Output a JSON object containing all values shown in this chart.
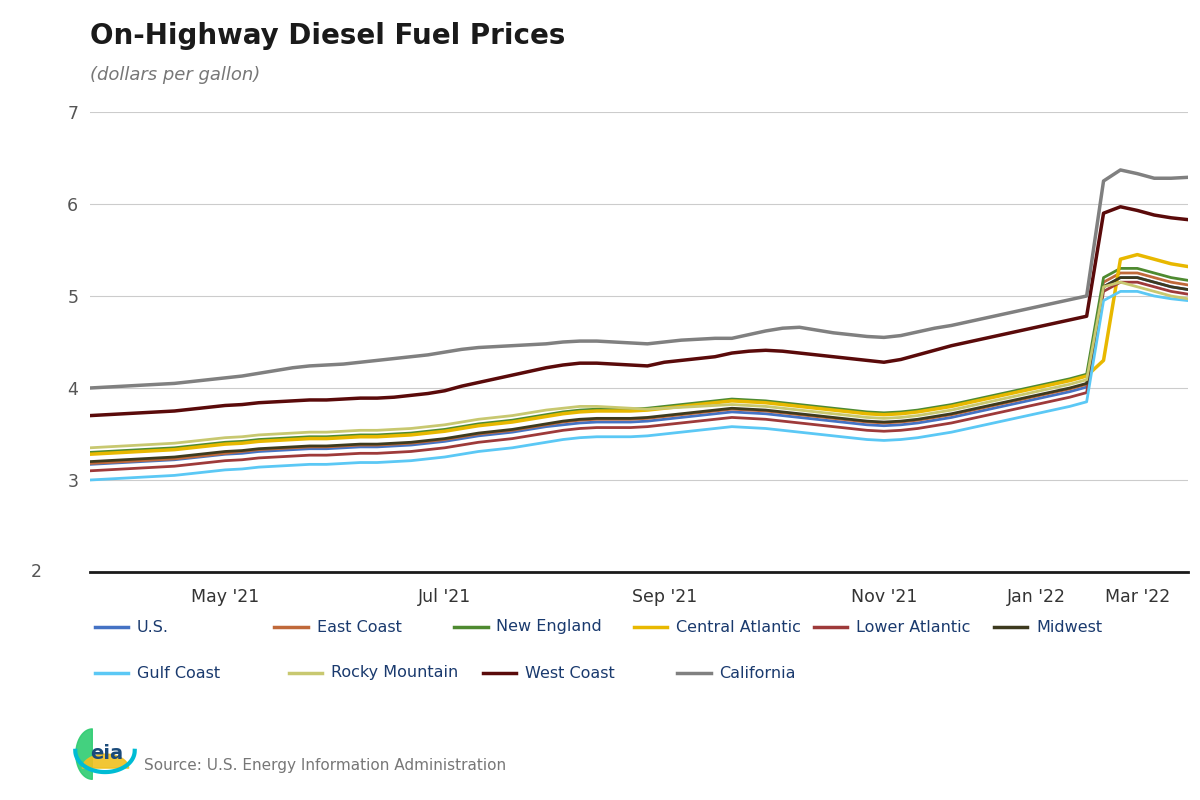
{
  "title": "On-Highway Diesel Fuel Prices",
  "subtitle": "(dollars per gallon)",
  "source": "Source: U.S. Energy Information Administration",
  "ylim": [
    2,
    7
  ],
  "yticks": [
    3,
    4,
    5,
    6,
    7
  ],
  "y2_label": "2",
  "background_color": "#ffffff",
  "plot_bg_color": "#ffffff",
  "legend_bg_color": "#e6e6e6",
  "series": [
    {
      "name": "U.S.",
      "color": "#4472c4",
      "lw": 2.0,
      "values": [
        3.17,
        3.18,
        3.19,
        3.2,
        3.21,
        3.22,
        3.24,
        3.26,
        3.28,
        3.29,
        3.31,
        3.32,
        3.33,
        3.34,
        3.34,
        3.35,
        3.36,
        3.36,
        3.37,
        3.38,
        3.4,
        3.42,
        3.45,
        3.48,
        3.5,
        3.52,
        3.55,
        3.58,
        3.6,
        3.62,
        3.63,
        3.63,
        3.63,
        3.64,
        3.66,
        3.68,
        3.7,
        3.72,
        3.74,
        3.73,
        3.72,
        3.7,
        3.68,
        3.66,
        3.64,
        3.62,
        3.6,
        3.59,
        3.6,
        3.62,
        3.65,
        3.68,
        3.72,
        3.76,
        3.8,
        3.84,
        3.88,
        3.92,
        3.96,
        4.01,
        5.1,
        5.2,
        5.2,
        5.15,
        5.1,
        5.07
      ]
    },
    {
      "name": "East Coast",
      "color": "#c0693a",
      "lw": 2.0,
      "values": [
        3.18,
        3.19,
        3.2,
        3.21,
        3.22,
        3.23,
        3.25,
        3.27,
        3.29,
        3.31,
        3.33,
        3.34,
        3.35,
        3.36,
        3.36,
        3.37,
        3.38,
        3.38,
        3.39,
        3.4,
        3.42,
        3.44,
        3.47,
        3.5,
        3.52,
        3.54,
        3.57,
        3.6,
        3.63,
        3.65,
        3.66,
        3.66,
        3.66,
        3.67,
        3.69,
        3.71,
        3.73,
        3.75,
        3.77,
        3.76,
        3.75,
        3.73,
        3.71,
        3.69,
        3.67,
        3.65,
        3.63,
        3.62,
        3.63,
        3.65,
        3.68,
        3.71,
        3.75,
        3.79,
        3.83,
        3.87,
        3.91,
        3.95,
        3.99,
        4.04,
        5.15,
        5.25,
        5.25,
        5.2,
        5.15,
        5.12
      ]
    },
    {
      "name": "New England",
      "color": "#4e8a30",
      "lw": 2.0,
      "values": [
        3.3,
        3.31,
        3.32,
        3.33,
        3.34,
        3.35,
        3.37,
        3.39,
        3.41,
        3.42,
        3.44,
        3.45,
        3.46,
        3.47,
        3.47,
        3.48,
        3.49,
        3.49,
        3.5,
        3.51,
        3.53,
        3.55,
        3.58,
        3.61,
        3.63,
        3.65,
        3.68,
        3.71,
        3.74,
        3.76,
        3.77,
        3.77,
        3.77,
        3.78,
        3.8,
        3.82,
        3.84,
        3.86,
        3.88,
        3.87,
        3.86,
        3.84,
        3.82,
        3.8,
        3.78,
        3.76,
        3.74,
        3.73,
        3.74,
        3.76,
        3.79,
        3.82,
        3.86,
        3.9,
        3.94,
        3.98,
        4.02,
        4.06,
        4.1,
        4.15,
        5.2,
        5.3,
        5.3,
        5.25,
        5.2,
        5.17
      ]
    },
    {
      "name": "Central Atlantic",
      "color": "#e8b800",
      "lw": 2.5,
      "values": [
        3.28,
        3.29,
        3.3,
        3.31,
        3.32,
        3.33,
        3.35,
        3.37,
        3.39,
        3.4,
        3.42,
        3.43,
        3.44,
        3.45,
        3.45,
        3.46,
        3.47,
        3.47,
        3.48,
        3.49,
        3.51,
        3.53,
        3.56,
        3.59,
        3.61,
        3.63,
        3.66,
        3.69,
        3.72,
        3.74,
        3.75,
        3.75,
        3.75,
        3.76,
        3.78,
        3.8,
        3.82,
        3.84,
        3.86,
        3.85,
        3.84,
        3.82,
        3.8,
        3.78,
        3.76,
        3.74,
        3.72,
        3.71,
        3.72,
        3.74,
        3.77,
        3.8,
        3.84,
        3.88,
        3.92,
        3.96,
        4.0,
        4.04,
        4.08,
        4.13,
        4.3,
        5.4,
        5.45,
        5.4,
        5.35,
        5.32
      ]
    },
    {
      "name": "Lower Atlantic",
      "color": "#9e3a3a",
      "lw": 2.0,
      "values": [
        3.1,
        3.11,
        3.12,
        3.13,
        3.14,
        3.15,
        3.17,
        3.19,
        3.21,
        3.22,
        3.24,
        3.25,
        3.26,
        3.27,
        3.27,
        3.28,
        3.29,
        3.29,
        3.3,
        3.31,
        3.33,
        3.35,
        3.38,
        3.41,
        3.43,
        3.45,
        3.48,
        3.51,
        3.54,
        3.56,
        3.57,
        3.57,
        3.57,
        3.58,
        3.6,
        3.62,
        3.64,
        3.66,
        3.68,
        3.67,
        3.66,
        3.64,
        3.62,
        3.6,
        3.58,
        3.56,
        3.54,
        3.53,
        3.54,
        3.56,
        3.59,
        3.62,
        3.66,
        3.7,
        3.74,
        3.78,
        3.82,
        3.86,
        3.9,
        3.95,
        5.05,
        5.15,
        5.15,
        5.1,
        5.05,
        5.02
      ]
    },
    {
      "name": "Midwest",
      "color": "#3d3a1e",
      "lw": 2.0,
      "values": [
        3.2,
        3.21,
        3.22,
        3.23,
        3.24,
        3.25,
        3.27,
        3.29,
        3.31,
        3.32,
        3.34,
        3.35,
        3.36,
        3.37,
        3.37,
        3.38,
        3.39,
        3.39,
        3.4,
        3.41,
        3.43,
        3.45,
        3.48,
        3.51,
        3.53,
        3.55,
        3.58,
        3.61,
        3.64,
        3.66,
        3.67,
        3.67,
        3.67,
        3.68,
        3.7,
        3.72,
        3.74,
        3.76,
        3.78,
        3.77,
        3.76,
        3.74,
        3.72,
        3.7,
        3.68,
        3.66,
        3.64,
        3.63,
        3.64,
        3.66,
        3.69,
        3.72,
        3.76,
        3.8,
        3.84,
        3.88,
        3.92,
        3.96,
        4.0,
        4.05,
        5.1,
        5.2,
        5.2,
        5.15,
        5.1,
        5.07
      ]
    },
    {
      "name": "Gulf Coast",
      "color": "#5bc8f5",
      "lw": 2.0,
      "values": [
        3.0,
        3.01,
        3.02,
        3.03,
        3.04,
        3.05,
        3.07,
        3.09,
        3.11,
        3.12,
        3.14,
        3.15,
        3.16,
        3.17,
        3.17,
        3.18,
        3.19,
        3.19,
        3.2,
        3.21,
        3.23,
        3.25,
        3.28,
        3.31,
        3.33,
        3.35,
        3.38,
        3.41,
        3.44,
        3.46,
        3.47,
        3.47,
        3.47,
        3.48,
        3.5,
        3.52,
        3.54,
        3.56,
        3.58,
        3.57,
        3.56,
        3.54,
        3.52,
        3.5,
        3.48,
        3.46,
        3.44,
        3.43,
        3.44,
        3.46,
        3.49,
        3.52,
        3.56,
        3.6,
        3.64,
        3.68,
        3.72,
        3.76,
        3.8,
        3.85,
        4.95,
        5.05,
        5.05,
        5.0,
        4.97,
        4.95
      ]
    },
    {
      "name": "Rocky Mountain",
      "color": "#c8c870",
      "lw": 2.0,
      "values": [
        3.35,
        3.36,
        3.37,
        3.38,
        3.39,
        3.4,
        3.42,
        3.44,
        3.46,
        3.47,
        3.49,
        3.5,
        3.51,
        3.52,
        3.52,
        3.53,
        3.54,
        3.54,
        3.55,
        3.56,
        3.58,
        3.6,
        3.63,
        3.66,
        3.68,
        3.7,
        3.73,
        3.76,
        3.78,
        3.8,
        3.8,
        3.79,
        3.78,
        3.77,
        3.78,
        3.79,
        3.8,
        3.81,
        3.82,
        3.81,
        3.8,
        3.78,
        3.76,
        3.74,
        3.72,
        3.7,
        3.68,
        3.67,
        3.68,
        3.7,
        3.73,
        3.76,
        3.8,
        3.84,
        3.88,
        3.92,
        3.96,
        4.0,
        4.04,
        4.09,
        5.1,
        5.15,
        5.1,
        5.05,
        5.0,
        4.97
      ]
    },
    {
      "name": "West Coast",
      "color": "#5a0a0a",
      "lw": 2.5,
      "values": [
        3.7,
        3.71,
        3.72,
        3.73,
        3.74,
        3.75,
        3.77,
        3.79,
        3.81,
        3.82,
        3.84,
        3.85,
        3.86,
        3.87,
        3.87,
        3.88,
        3.89,
        3.89,
        3.9,
        3.92,
        3.94,
        3.97,
        4.02,
        4.06,
        4.1,
        4.14,
        4.18,
        4.22,
        4.25,
        4.27,
        4.27,
        4.26,
        4.25,
        4.24,
        4.28,
        4.3,
        4.32,
        4.34,
        4.38,
        4.4,
        4.41,
        4.4,
        4.38,
        4.36,
        4.34,
        4.32,
        4.3,
        4.28,
        4.31,
        4.36,
        4.41,
        4.46,
        4.5,
        4.54,
        4.58,
        4.62,
        4.66,
        4.7,
        4.74,
        4.78,
        5.9,
        5.97,
        5.93,
        5.88,
        5.85,
        5.83
      ]
    },
    {
      "name": "California",
      "color": "#808080",
      "lw": 2.5,
      "values": [
        4.0,
        4.01,
        4.02,
        4.03,
        4.04,
        4.05,
        4.07,
        4.09,
        4.11,
        4.13,
        4.16,
        4.19,
        4.22,
        4.24,
        4.25,
        4.26,
        4.28,
        4.3,
        4.32,
        4.34,
        4.36,
        4.39,
        4.42,
        4.44,
        4.45,
        4.46,
        4.47,
        4.48,
        4.5,
        4.51,
        4.51,
        4.5,
        4.49,
        4.48,
        4.5,
        4.52,
        4.53,
        4.54,
        4.54,
        4.58,
        4.62,
        4.65,
        4.66,
        4.63,
        4.6,
        4.58,
        4.56,
        4.55,
        4.57,
        4.61,
        4.65,
        4.68,
        4.72,
        4.76,
        4.8,
        4.84,
        4.88,
        4.92,
        4.96,
        5.0,
        6.25,
        6.37,
        6.33,
        6.28,
        6.28,
        6.29
      ]
    }
  ],
  "xtick_labels": [
    "May '21",
    "Jul '21",
    "Sep '21",
    "Nov '21",
    "Jan '22",
    "Mar '22"
  ],
  "xtick_positions": [
    8,
    21,
    34,
    47,
    56,
    62
  ],
  "legend_row1": [
    "U.S.",
    "East Coast",
    "New England",
    "Central Atlantic",
    "Lower Atlantic",
    "Midwest"
  ],
  "legend_row2": [
    "Gulf Coast",
    "Rocky Mountain",
    "West Coast",
    "California"
  ]
}
